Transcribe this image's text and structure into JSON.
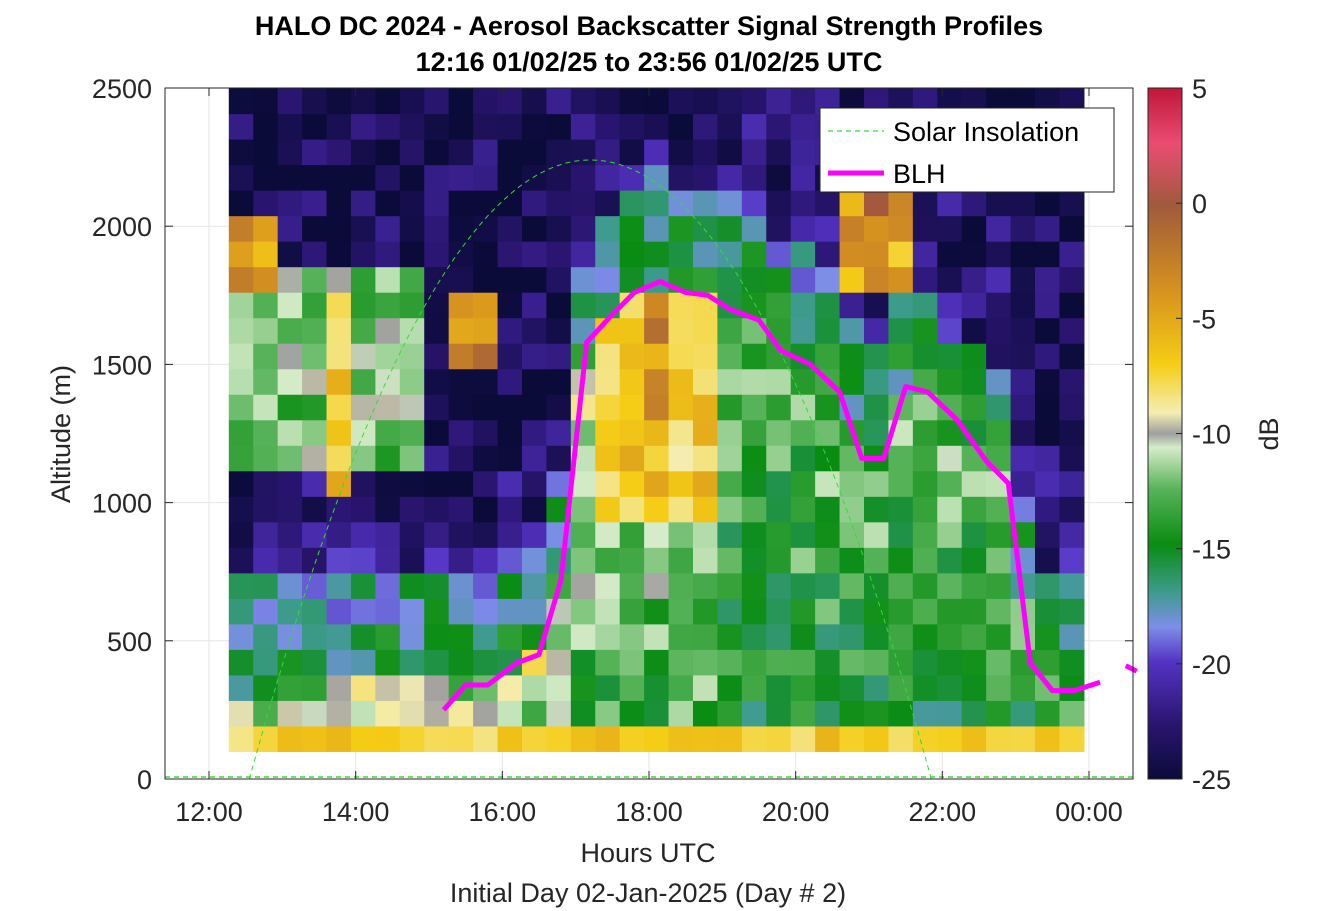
{
  "chart_data": {
    "type": "heatmap",
    "title": "HALO DC 2024 - Aerosol Backscatter Signal Strength Profiles",
    "subtitle": "12:16 01/02/25 to 23:56 01/02/25  UTC",
    "xlabel": "Hours UTC",
    "xlabel2": "Initial Day 02-Jan-2025 (Day # 2)",
    "ylabel": "Altitude (m)",
    "xlim": [
      11.4,
      24.6
    ],
    "ylim": [
      0,
      2500
    ],
    "x_ticks": [
      12,
      14,
      16,
      18,
      20,
      22,
      24
    ],
    "x_tick_labels": [
      "12:00",
      "14:00",
      "16:00",
      "18:00",
      "20:00",
      "22:00",
      "00:00"
    ],
    "y_ticks": [
      0,
      500,
      1000,
      1500,
      2000,
      2500
    ],
    "y_tick_labels": [
      "0",
      "500",
      "1000",
      "1500",
      "2000",
      "2500"
    ],
    "grid": true,
    "colorbar": {
      "label": "dB",
      "range": [
        -25,
        5
      ],
      "ticks": [
        5,
        0,
        -5,
        -10,
        -15,
        -20,
        -25
      ],
      "tick_labels": [
        "5",
        "0",
        "-5",
        "-10",
        "-15",
        "-20",
        "-25"
      ]
    },
    "legend": {
      "placement": "top-right",
      "entries": [
        {
          "name": "Solar Insolation",
          "color": "#33dd33",
          "style": "dashed"
        },
        {
          "name": "BLH",
          "color": "#ff00ff",
          "style": "solid"
        }
      ]
    },
    "heatmap": {
      "t_start": 12.27,
      "t_end": 23.93,
      "alt_start": 100,
      "alt_end": 2500
    },
    "series": [
      {
        "name": "BLH",
        "x": [
          15.2,
          15.5,
          15.8,
          16.2,
          16.5,
          16.8,
          17.15,
          17.5,
          17.8,
          18.15,
          18.5,
          18.8,
          19.1,
          19.5,
          19.8,
          20.2,
          20.6,
          20.9,
          21.2,
          21.5,
          21.8,
          22.2,
          22.6,
          22.9,
          23.2,
          23.5,
          23.8,
          24.15
        ],
        "y": [
          250,
          340,
          340,
          420,
          450,
          720,
          1580,
          1680,
          1760,
          1800,
          1760,
          1750,
          1700,
          1660,
          1550,
          1500,
          1400,
          1160,
          1160,
          1420,
          1400,
          1300,
          1150,
          1070,
          420,
          320,
          320,
          350
        ]
      },
      {
        "name": "BLH",
        "x": [
          24.5,
          24.65
        ],
        "y": [
          410,
          390
        ]
      },
      {
        "name": "Solar Insolation",
        "peak_time": 17.2,
        "peak_alt": 2240,
        "zero_start": 12.55,
        "zero_end": 21.85
      }
    ]
  }
}
